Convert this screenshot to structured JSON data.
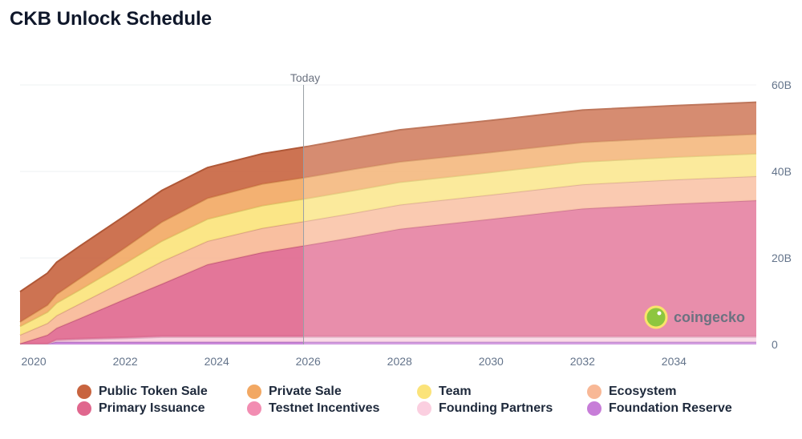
{
  "chart_data": {
    "type": "area",
    "stacked": true,
    "title": "CKB Unlock Schedule",
    "xlabel": "",
    "ylabel": "",
    "x_ticks": [
      2020,
      2022,
      2024,
      2026,
      2028,
      2030,
      2032,
      2034
    ],
    "xlim": [
      2019.7,
      2035.8
    ],
    "y_ticks": [
      0,
      20,
      40,
      60
    ],
    "y_tick_labels": [
      "0",
      "20B",
      "40B",
      "60B"
    ],
    "ylim": [
      0,
      60
    ],
    "y_axis_side": "right",
    "today": {
      "label": "Today",
      "x": 2025.9
    },
    "x": [
      2019.7,
      2020.3,
      2020.5,
      2021.0,
      2022.0,
      2022.8,
      2023.8,
      2025.0,
      2026.0,
      2027.0,
      2028.0,
      2030.0,
      2032.0,
      2034.0,
      2035.8
    ],
    "series": [
      {
        "name": "Foundation Reserve",
        "color": "#c77dd8",
        "values": [
          0.2,
          0.2,
          0.6,
          0.6,
          0.6,
          0.6,
          0.6,
          0.6,
          0.6,
          0.6,
          0.6,
          0.6,
          0.6,
          0.6,
          0.6
        ]
      },
      {
        "name": "Founding Partners",
        "color": "#fbcfe0",
        "values": [
          0.0,
          0.0,
          0.3,
          0.5,
          0.8,
          1.1,
          1.1,
          1.1,
          1.1,
          1.1,
          1.1,
          1.1,
          1.1,
          1.1,
          1.1
        ]
      },
      {
        "name": "Testnet Incentives",
        "color": "#f28db2",
        "values": [
          0.0,
          0.0,
          0.3,
          0.3,
          0.3,
          0.3,
          0.3,
          0.3,
          0.3,
          0.3,
          0.3,
          0.3,
          0.3,
          0.3,
          0.3
        ]
      },
      {
        "name": "Primary Issuance",
        "color": "#e0678e",
        "values": [
          0.0,
          2.0,
          2.6,
          4.6,
          8.8,
          12.0,
          16.5,
          19.3,
          21.0,
          22.8,
          24.7,
          27.0,
          29.4,
          30.5,
          31.3
        ]
      },
      {
        "name": "Ecosystem",
        "color": "#f8b896",
        "values": [
          2.0,
          2.7,
          2.9,
          3.4,
          4.3,
          5.2,
          5.4,
          5.6,
          5.6,
          5.6,
          5.6,
          5.6,
          5.6,
          5.6,
          5.6
        ]
      },
      {
        "name": "Team",
        "color": "#fbe37a",
        "values": [
          2.0,
          2.6,
          2.9,
          3.2,
          4.0,
          4.7,
          5.1,
          5.2,
          5.2,
          5.2,
          5.2,
          5.2,
          5.2,
          5.2,
          5.2
        ]
      },
      {
        "name": "Private Sale",
        "color": "#f2a863",
        "values": [
          1.0,
          1.6,
          2.0,
          2.6,
          3.6,
          4.4,
          4.8,
          5.0,
          4.9,
          4.9,
          4.7,
          4.6,
          4.5,
          4.5,
          4.5
        ]
      },
      {
        "name": "Public Token Sale",
        "color": "#c8643f",
        "values": [
          7.0,
          7.4,
          7.4,
          7.5,
          7.4,
          7.3,
          7.1,
          7.0,
          7.1,
          7.2,
          7.4,
          7.4,
          7.5,
          7.4,
          7.4
        ]
      }
    ],
    "legend_order": [
      "Public Token Sale",
      "Private Sale",
      "Team",
      "Ecosystem",
      "Primary Issuance",
      "Testnet Incentives",
      "Founding Partners",
      "Foundation Reserve"
    ],
    "legend_placement": "bottom"
  },
  "watermark": {
    "text": "coingecko",
    "icon": "gecko-logo-icon"
  }
}
